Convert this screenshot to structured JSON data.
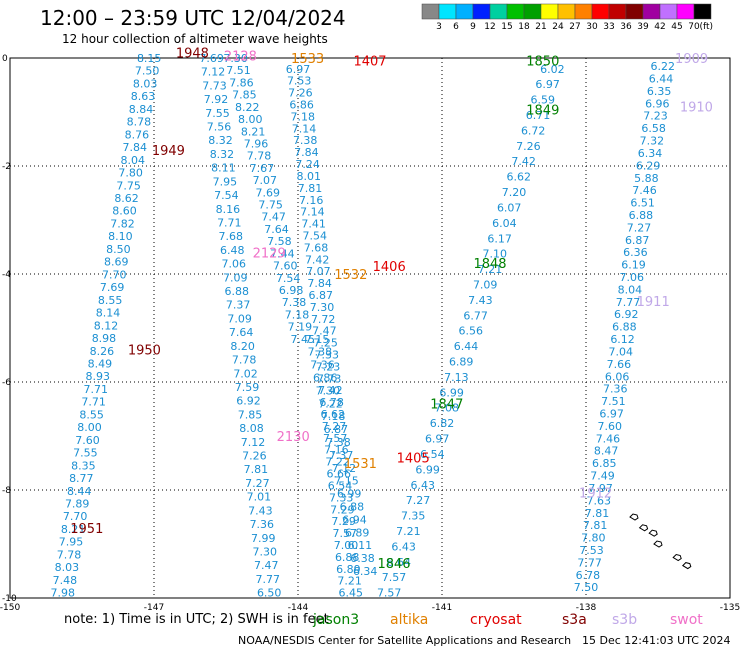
{
  "header": {
    "title": "12:00 – 23:59 UTC 12/04/2024",
    "subtitle": "12 hour collection of altimeter wave heights"
  },
  "scale": {
    "unit": "(ft)",
    "labels": [
      "3",
      "6",
      "9",
      "12",
      "15",
      "18",
      "21",
      "24",
      "27",
      "30",
      "33",
      "36",
      "39",
      "42",
      "45",
      "70"
    ],
    "colors": [
      "#888888",
      "#00e5ff",
      "#00b0ff",
      "#0020ff",
      "#00d0a0",
      "#00c000",
      "#00a000",
      "#ffff00",
      "#ffc000",
      "#ff8000",
      "#ff0000",
      "#c00000",
      "#800000",
      "#a000a0",
      "#c070ff",
      "#ff00ff",
      "#000000"
    ]
  },
  "chart_data": {
    "type": "scatter",
    "xlim": [
      -150,
      -135
    ],
    "ylim": [
      -10,
      0
    ],
    "x_ticks": [
      "-150",
      "-147",
      "-144",
      "-141",
      "-138",
      "-135"
    ],
    "y_ticks": [
      "0",
      "-2",
      "-4",
      "-6",
      "-8",
      "-10"
    ],
    "grid": true,
    "passes": [
      {
        "label": "1948",
        "color": "#800000",
        "x": -146.2,
        "y": 0.1
      },
      {
        "label": "1949",
        "color": "#800000",
        "x": -146.7,
        "y": -1.7
      },
      {
        "label": "1950",
        "color": "#800000",
        "x": -147.2,
        "y": -5.4
      },
      {
        "label": "1951",
        "color": "#800000",
        "x": -148.4,
        "y": -8.7
      },
      {
        "label": "2128",
        "color": "#f070c8",
        "x": -145.2,
        "y": 0.05
      },
      {
        "label": "2129",
        "color": "#f070c8",
        "x": -144.6,
        "y": -3.6
      },
      {
        "label": "2130",
        "color": "#f070c8",
        "x": -144.1,
        "y": -7.0
      },
      {
        "label": "1533",
        "color": "#e08000",
        "x": -143.8,
        "y": 0.0
      },
      {
        "label": "1532",
        "color": "#e08000",
        "x": -142.9,
        "y": -4.0
      },
      {
        "label": "1531",
        "color": "#e08000",
        "x": -142.7,
        "y": -7.5
      },
      {
        "label": "1407",
        "color": "#e00000",
        "x": -142.5,
        "y": -0.05
      },
      {
        "label": "1406",
        "color": "#e00000",
        "x": -142.1,
        "y": -3.85
      },
      {
        "label": "1405",
        "color": "#e00000",
        "x": -141.6,
        "y": -7.4
      },
      {
        "label": "1850",
        "color": "#008000",
        "x": -138.9,
        "y": -0.05
      },
      {
        "label": "1849",
        "color": "#008000",
        "x": -138.9,
        "y": -0.95
      },
      {
        "label": "1848",
        "color": "#008000",
        "x": -140.0,
        "y": -3.8
      },
      {
        "label": "1847",
        "color": "#008000",
        "x": -140.9,
        "y": -6.4
      },
      {
        "label": "1846",
        "color": "#008000",
        "x": -142.0,
        "y": -9.35
      },
      {
        "label": "1909",
        "color": "#c0a8e8",
        "x": -135.8,
        "y": 0.0
      },
      {
        "label": "1910",
        "color": "#c0a8e8",
        "x": -135.7,
        "y": -0.9
      },
      {
        "label": "1911",
        "color": "#c0a8e8",
        "x": -136.6,
        "y": -4.5
      },
      {
        "label": "1912",
        "color": "#c0a8e8",
        "x": -137.8,
        "y": -8.05
      }
    ],
    "tracks": [
      {
        "x0": -147.1,
        "y0": 0.0,
        "x1": -148.9,
        "y1": -9.9,
        "values": [
          "8.15",
          "7.50",
          "8.03",
          "8.63",
          "8.84",
          "8.78",
          "8.76",
          "7.84",
          "8.04",
          "7.80",
          "7.75",
          "8.62",
          "8.60",
          "7.82",
          "8.10",
          "8.50",
          "8.69",
          "7.70",
          "7.69",
          "8.55",
          "8.14",
          "8.12",
          "8.98",
          "8.26",
          "8.49",
          "8.93",
          "7.71",
          "7.71",
          "8.55",
          "8.00",
          "7.60",
          "7.55",
          "8.35",
          "8.77",
          "8.44",
          "7.89",
          "7.70",
          "8.21",
          "7.95",
          "7.78",
          "8.03",
          "7.48",
          "7.98"
        ]
      },
      {
        "x0": -145.8,
        "y0": 0.0,
        "x1": -144.6,
        "y1": -9.9,
        "values": [
          "7.69",
          "7.12",
          "7.73",
          "7.92",
          "7.55",
          "7.56",
          "8.32",
          "8.32",
          "8.11",
          "7.95",
          "7.54",
          "8.16",
          "7.71",
          "7.68",
          "6.48",
          "7.06",
          "7.09",
          "6.88",
          "7.37",
          "7.09",
          "7.64",
          "8.20",
          "7.78",
          "7.02",
          "7.59",
          "6.92",
          "7.85",
          "8.08",
          "7.12",
          "7.26",
          "7.81",
          "7.27",
          "7.01",
          "7.43",
          "7.36",
          "7.99",
          "7.30",
          "7.47",
          "7.77",
          "6.50"
        ]
      },
      {
        "x0": -145.3,
        "y0": 0.0,
        "x1": -143.9,
        "y1": -5.2,
        "values": [
          "7.30",
          "7.51",
          "7.86",
          "7.85",
          "8.22",
          "8.00",
          "8.21",
          "7.96",
          "7.78",
          "7.67",
          "7.07",
          "7.69",
          "7.75",
          "7.47",
          "7.64",
          "7.58",
          "7.44",
          "7.60",
          "7.54",
          "6.98",
          "7.38",
          "7.18",
          "7.19",
          "7.45"
        ]
      },
      {
        "x0": -144.0,
        "y0": -0.2,
        "x1": -142.9,
        "y1": -9.9,
        "values": [
          "6.97",
          "7.53",
          "7.26",
          "6.86",
          "7.18",
          "7.14",
          "7.38",
          "7.84",
          "7.24",
          "8.01",
          "7.81",
          "7.16",
          "7.14",
          "7.41",
          "7.54",
          "7.68",
          "7.42",
          "7.07",
          "7.84",
          "6.87",
          "7.30",
          "7.72",
          "7.47",
          "7.25",
          "7.33",
          "7.23",
          "7.73",
          "7.42",
          "6.78",
          "6.62",
          "7.27",
          "7.57",
          "7.16",
          "7.22",
          "6.66",
          "6.54",
          "7.33",
          "7.29",
          "7.29",
          "7.57",
          "7.00",
          "6.88",
          "6.89",
          "7.21",
          "6.45"
        ]
      },
      {
        "x0": -143.6,
        "y0": -5.2,
        "x1": -142.6,
        "y1": -9.5,
        "values": [
          "7.15",
          "7.38",
          "7.36",
          "6.86",
          "7.30",
          "7.22",
          "7.18",
          "6.87",
          "7.38",
          "7.37",
          "7.12",
          "7.15",
          "6.99",
          "6.88",
          "6.94",
          "6.89",
          "6.11",
          "6.38",
          "6.34"
        ]
      },
      {
        "x0": -138.7,
        "y0": -0.2,
        "x1": -142.1,
        "y1": -9.9,
        "values": [
          "6.02",
          "6.97",
          "6.59",
          "6.71",
          "6.72",
          "7.26",
          "7.42",
          "6.62",
          "7.20",
          "6.07",
          "6.04",
          "6.17",
          "7.10",
          "7.21",
          "7.09",
          "7.43",
          "6.77",
          "6.56",
          "6.44",
          "6.89",
          "7.13",
          "6.99",
          "7.08",
          "6.82",
          "6.97",
          "6.54",
          "6.99",
          "6.43",
          "7.27",
          "7.35",
          "7.21",
          "6.43",
          "6.64",
          "7.57",
          "7.57"
        ]
      },
      {
        "x0": -136.4,
        "y0": -0.15,
        "x1": -138.0,
        "y1": -9.8,
        "values": [
          "6.22",
          "6.44",
          "6.35",
          "6.96",
          "7.23",
          "6.58",
          "7.32",
          "6.34",
          "6.29",
          "5.88",
          "7.46",
          "6.51",
          "6.88",
          "7.27",
          "6.87",
          "6.36",
          "6.19",
          "7.06",
          "8.04",
          "7.77",
          "6.92",
          "6.88",
          "6.12",
          "7.04",
          "7.66",
          "6.06",
          "7.36",
          "7.51",
          "6.97",
          "7.60",
          "7.46",
          "8.47",
          "6.85",
          "7.49",
          "7.97",
          "7.63",
          "7.81",
          "7.81",
          "7.80",
          "7.53",
          "7.77",
          "6.78",
          "7.50"
        ]
      }
    ]
  },
  "note": {
    "text": "note:  1) Time is in UTC;  2) SWH is in feet"
  },
  "legend": [
    {
      "label": "jason3",
      "color": "#008000"
    },
    {
      "label": "altika",
      "color": "#e08000"
    },
    {
      "label": "cryosat",
      "color": "#e00000"
    },
    {
      "label": "s3a",
      "color": "#800000"
    },
    {
      "label": "s3b",
      "color": "#c0a8e8"
    },
    {
      "label": "swot",
      "color": "#f070c8"
    }
  ],
  "footer": {
    "center": "NOAA/NESDIS Center for Satellite Applications and Research",
    "date": "15 Dec 12:41:03 UTC 2024"
  }
}
